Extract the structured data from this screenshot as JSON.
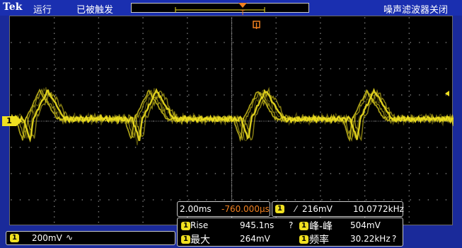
{
  "header": {
    "brand": "Tek",
    "run_state": "运行",
    "trigger_state": "已被触发",
    "noise_filter": "噪声滤波器关闭"
  },
  "colors": {
    "trace": "#f0e020",
    "accent": "#f08020",
    "background": "#1a2a9a",
    "screen": "#000000"
  },
  "channel": {
    "marker": "1",
    "scale": "200mV",
    "coupling_symbol": "∿"
  },
  "timebase": {
    "scale": "2.00ms",
    "delay": "-760.000µs"
  },
  "trigger": {
    "source": "1",
    "slope_symbol": "⁄",
    "level": "216mV",
    "freq": "10.0772kHz"
  },
  "measurements": [
    {
      "ch": "1",
      "label": "Rise",
      "value": "945.1ns",
      "flag": "?"
    },
    {
      "ch": "1",
      "label": "峰-峰",
      "value": "504mV",
      "flag": ""
    },
    {
      "ch": "1",
      "label": "最大",
      "value": "264mV",
      "flag": ""
    },
    {
      "ch": "1",
      "label": "频率",
      "value": "30.22kHz",
      "flag": "?"
    }
  ]
}
